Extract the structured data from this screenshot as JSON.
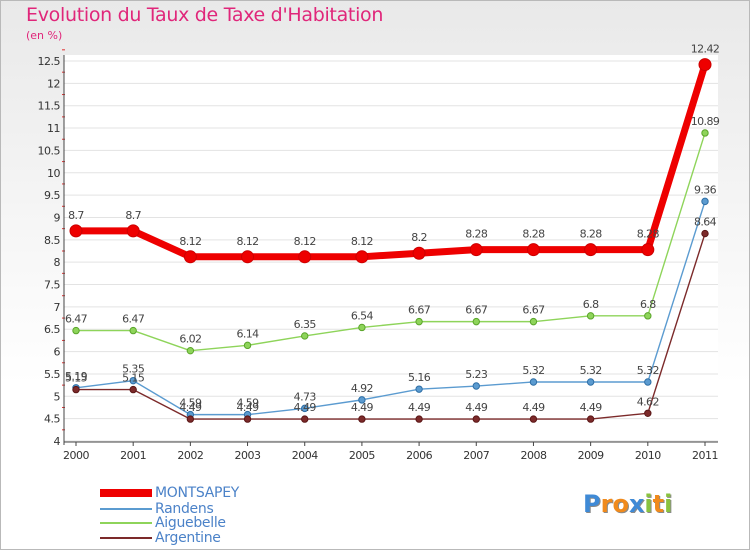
{
  "title": "Evolution du Taux de Taxe d'Habitation",
  "unit": "(en %)",
  "logo": {
    "text": "Proxiti",
    "letters": [
      "P",
      "r",
      "o",
      "x",
      "i",
      "t",
      "i"
    ],
    "colors": [
      "#3f8ad6",
      "#f08a1c",
      "#f08a1c",
      "#3f8ad6",
      "#8ac23f",
      "#f08a1c",
      "#8ac23f"
    ]
  },
  "legend": [
    {
      "name": "MONTSAPEY",
      "color": "#ee0000"
    },
    {
      "name": "Randens",
      "color": "#5b9bd0"
    },
    {
      "name": "Aiguebelle",
      "color": "#8ed45a"
    },
    {
      "name": "Argentine",
      "color": "#7c2a2a"
    }
  ],
  "chart_data": {
    "type": "line",
    "title": "Evolution du Taux de Taxe d'Habitation",
    "ylabel": "(en %)",
    "ylim": [
      4,
      12.5
    ],
    "yticks": [
      "4",
      "4.5",
      "5",
      "5.5",
      "6",
      "6.5",
      "7",
      "7.5",
      "8",
      "8.5",
      "9",
      "9.5",
      "10",
      "10.5",
      "11",
      "11.5",
      "12",
      "12.5"
    ],
    "categories": [
      "2000",
      "2001",
      "2002",
      "2003",
      "2004",
      "2005",
      "2006",
      "2007",
      "2008",
      "2009",
      "2010",
      "2011"
    ],
    "grid": "horizontal",
    "legend_position": "bottom-left",
    "series": [
      {
        "name": "MONTSAPEY",
        "color": "#ee0000",
        "values": [
          8.7,
          8.7,
          8.12,
          8.12,
          8.12,
          8.12,
          8.2,
          8.28,
          8.28,
          8.28,
          8.28,
          12.42
        ],
        "labels": [
          "8.7",
          "8.7",
          "8.12",
          "8.12",
          "8.12",
          "8.12",
          "8.2",
          "8.28",
          "8.28",
          "8.28",
          "8.28",
          "12.42"
        ]
      },
      {
        "name": "Randens",
        "color": "#5b9bd0",
        "values": [
          5.19,
          5.35,
          4.59,
          4.59,
          4.73,
          4.92,
          5.16,
          5.23,
          5.32,
          5.32,
          5.32,
          9.36
        ],
        "labels": [
          "5.19",
          "5.35",
          "4.59",
          "4.59",
          "4.73",
          "4.92",
          "5.16",
          "5.23",
          "5.32",
          "5.32",
          "5.32",
          "9.36"
        ]
      },
      {
        "name": "Aiguebelle",
        "color": "#8ed45a",
        "values": [
          6.47,
          6.47,
          6.02,
          6.14,
          6.35,
          6.54,
          6.67,
          6.67,
          6.67,
          6.8,
          6.8,
          10.89
        ],
        "labels": [
          "6.47",
          "6.47",
          "6.02",
          "6.14",
          "6.35",
          "6.54",
          "6.67",
          "6.67",
          "6.67",
          "6.8",
          "6.8",
          "10.89"
        ]
      },
      {
        "name": "Argentine",
        "color": "#7c2a2a",
        "values": [
          5.15,
          5.15,
          4.49,
          4.49,
          4.49,
          4.49,
          4.49,
          4.49,
          4.49,
          4.49,
          4.62,
          8.64
        ],
        "labels": [
          "5.15",
          "5.15",
          "4.49",
          "4.49",
          "4.49",
          "4.49",
          "4.49",
          "4.49",
          "4.49",
          "4.49",
          "4.62",
          "8.64"
        ]
      }
    ]
  }
}
